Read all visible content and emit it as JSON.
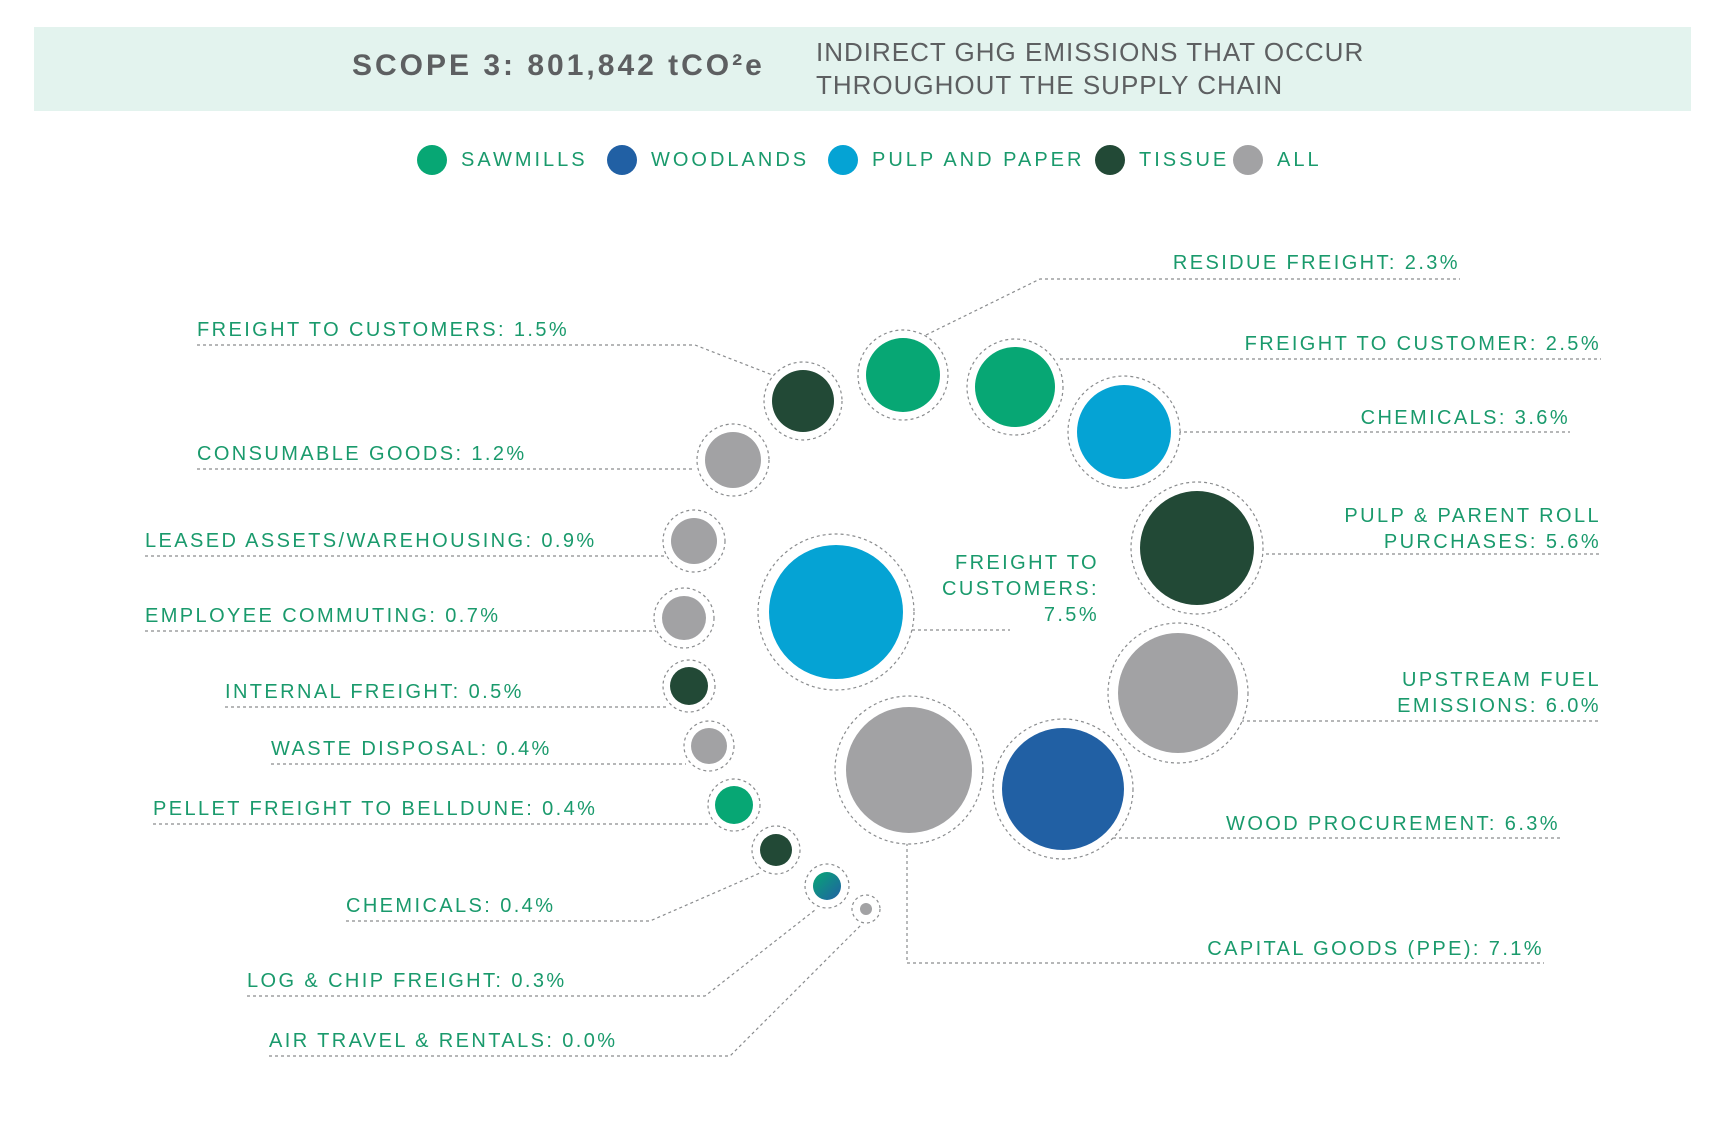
{
  "header": {
    "scope_title": "SCOPE 3: 801,842 tCO²e",
    "description": "INDIRECT GHG EMISSIONS THAT OCCUR THROUGHOUT THE SUPPLY CHAIN"
  },
  "colors": {
    "sawmills": "#07a774",
    "woodlands": "#2160a4",
    "pulp_and_paper": "#05a3d4",
    "tissue": "#224936",
    "all": "#a2a2a4",
    "label_text": "#1a9a6c",
    "banner_bg": "#e3f3ee"
  },
  "legend": [
    {
      "label": "SAWMILLS",
      "color": "#07a774"
    },
    {
      "label": "WOODLANDS",
      "color": "#2160a4"
    },
    {
      "label": "PULP AND PAPER",
      "color": "#05a3d4"
    },
    {
      "label": "TISSUE",
      "color": "#224936"
    },
    {
      "label": "ALL",
      "color": "#a2a2a4"
    }
  ],
  "chart_data": {
    "type": "bubble",
    "title": "SCOPE 3: 801,842 tCO²e",
    "unit": "%",
    "items": [
      {
        "label": "RESIDUE FREIGHT",
        "value": 2.3,
        "segment": "SAWMILLS"
      },
      {
        "label": "FREIGHT TO CUSTOMER",
        "value": 2.5,
        "segment": "SAWMILLS"
      },
      {
        "label": "CHEMICALS",
        "value": 3.6,
        "segment": "PULP AND PAPER"
      },
      {
        "label": "PULP & PARENT ROLL PURCHASES",
        "value": 5.6,
        "segment": "TISSUE"
      },
      {
        "label": "UPSTREAM FUEL EMISSIONS",
        "value": 6.0,
        "segment": "ALL"
      },
      {
        "label": "WOOD PROCUREMENT",
        "value": 6.3,
        "segment": "WOODLANDS"
      },
      {
        "label": "CAPITAL GOODS (PPE)",
        "value": 7.1,
        "segment": "ALL"
      },
      {
        "label": "FREIGHT TO CUSTOMERS",
        "value": 7.5,
        "segment": "PULP AND PAPER"
      },
      {
        "label": "FREIGHT TO CUSTOMERS",
        "value": 1.5,
        "segment": "TISSUE"
      },
      {
        "label": "CONSUMABLE GOODS",
        "value": 1.2,
        "segment": "ALL"
      },
      {
        "label": "LEASED ASSETS/WAREHOUSING",
        "value": 0.9,
        "segment": "ALL"
      },
      {
        "label": "EMPLOYEE COMMUTING",
        "value": 0.7,
        "segment": "ALL"
      },
      {
        "label": "INTERNAL FREIGHT",
        "value": 0.5,
        "segment": "TISSUE"
      },
      {
        "label": "WASTE DISPOSAL",
        "value": 0.4,
        "segment": "ALL"
      },
      {
        "label": "PELLET FREIGHT TO BELLDUNE",
        "value": 0.4,
        "segment": "SAWMILLS"
      },
      {
        "label": "CHEMICALS",
        "value": 0.4,
        "segment": "TISSUE"
      },
      {
        "label": "LOG & CHIP FREIGHT",
        "value": 0.3,
        "segment": "SAWMILLS / WOODLANDS"
      },
      {
        "label": "AIR TRAVEL & RENTALS",
        "value": 0.0,
        "segment": "ALL"
      }
    ],
    "labels": [
      "RESIDUE FREIGHT: 2.3%",
      "FREIGHT TO CUSTOMER: 2.5%",
      "CHEMICALS: 3.6%",
      "PULP & PARENT ROLL",
      "PURCHASES: 5.6%",
      "UPSTREAM FUEL",
      "EMISSIONS: 6.0%",
      "WOOD PROCUREMENT: 6.3%",
      "CAPITAL GOODS (PPE): 7.1%",
      "FREIGHT TO",
      "CUSTOMERS:",
      "7.5%",
      "FREIGHT TO CUSTOMERS: 1.5%",
      "CONSUMABLE GOODS: 1.2%",
      "LEASED ASSETS/WAREHOUSING: 0.9%",
      "EMPLOYEE COMMUTING: 0.7%",
      "INTERNAL FREIGHT: 0.5%",
      "WASTE DISPOSAL: 0.4%",
      "PELLET FREIGHT TO BELLDUNE: 0.4%",
      "CHEMICALS: 0.4%",
      "LOG & CHIP FREIGHT: 0.3%",
      "AIR TRAVEL & RENTALS: 0.0%"
    ]
  }
}
